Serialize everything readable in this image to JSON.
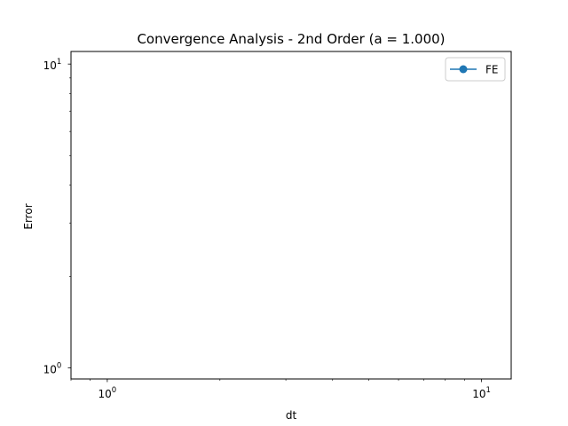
{
  "chart_data": {
    "type": "line",
    "title": "Convergence Analysis - 2nd Order (a = 1.000)",
    "xlabel": "dt",
    "ylabel": "Error",
    "xscale": "log",
    "yscale": "log",
    "xlim": [
      0.8,
      12.0
    ],
    "ylim": [
      0.92,
      11.0
    ],
    "x_major_ticks": [
      1,
      10
    ],
    "x_major_tick_labels": [
      "10",
      "10"
    ],
    "x_tick_exponents": [
      "0",
      "1"
    ],
    "y_major_ticks": [
      1,
      10
    ],
    "y_major_tick_labels": [
      "10",
      "10"
    ],
    "y_tick_exponents": [
      "0",
      "1"
    ],
    "grid": false,
    "legend_position": "top-right",
    "series": [
      {
        "name": "FE",
        "color": "#1f77b4",
        "marker": "circle",
        "x": [],
        "y": []
      }
    ]
  }
}
